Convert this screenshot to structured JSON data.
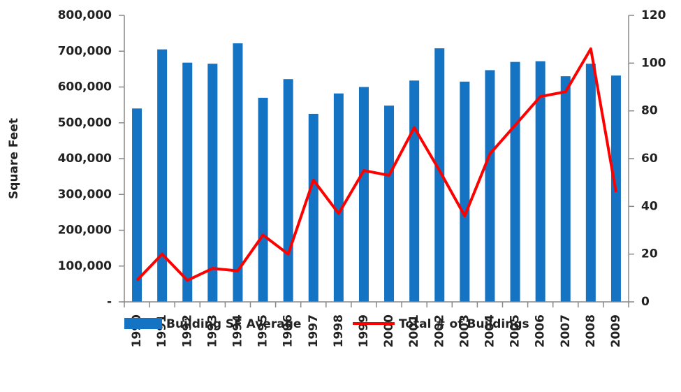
{
  "chart_data": {
    "type": "bar-line",
    "y_label": "Square Feet",
    "categories": [
      "1990",
      "1991",
      "1992",
      "1993",
      "1994",
      "1995",
      "1996",
      "1997",
      "1998",
      "1999",
      "2000",
      "2001",
      "2002",
      "2003",
      "2004",
      "2005",
      "2006",
      "2007",
      "2008",
      "2009"
    ],
    "series": [
      {
        "name": "Building SF Average",
        "color": "#1473c2",
        "type": "bar",
        "values": [
          540000,
          705000,
          668000,
          665000,
          722000,
          570000,
          622000,
          525000,
          582000,
          600000,
          548000,
          618000,
          708000,
          615000,
          647000,
          670000,
          672000,
          630000,
          665000,
          632000
        ]
      },
      {
        "name": "Total # of Buildings",
        "color": "#ff0000",
        "type": "line",
        "axis": "y2",
        "values": [
          9,
          20,
          9,
          14,
          13,
          28,
          20,
          51,
          37,
          55,
          53,
          73,
          55,
          36,
          62,
          74,
          86,
          88,
          106,
          46
        ]
      }
    ],
    "ylim": [
      0,
      800000
    ],
    "yticks": [
      {
        "value": 0,
        "label": "-"
      },
      {
        "value": 100000,
        "label": "100,000"
      },
      {
        "value": 200000,
        "label": "200,000"
      },
      {
        "value": 300000,
        "label": "300,000"
      },
      {
        "value": 400000,
        "label": "400,000"
      },
      {
        "value": 500000,
        "label": "500,000"
      },
      {
        "value": 600000,
        "label": "600,000"
      },
      {
        "value": 700000,
        "label": "700,000"
      },
      {
        "value": 800000,
        "label": "800,000"
      }
    ],
    "y2lim": [
      0,
      120
    ],
    "y2ticks": [
      0,
      20,
      40,
      60,
      80,
      100,
      120
    ],
    "legend": "bottom"
  }
}
